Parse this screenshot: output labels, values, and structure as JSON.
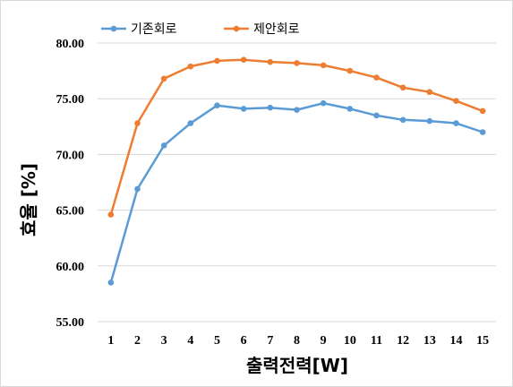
{
  "chart_data": {
    "type": "line",
    "x": [
      1,
      2,
      3,
      4,
      5,
      6,
      7,
      8,
      9,
      10,
      11,
      12,
      13,
      14,
      15
    ],
    "series": [
      {
        "name": "기존회로",
        "color": "#5b9bd5",
        "values": [
          58.5,
          66.9,
          70.8,
          72.8,
          74.4,
          74.1,
          74.2,
          74.0,
          74.6,
          74.1,
          73.5,
          73.1,
          73.0,
          72.8,
          72.0
        ]
      },
      {
        "name": "제안회로",
        "color": "#ed7d31",
        "values": [
          64.6,
          72.8,
          76.8,
          77.9,
          78.4,
          78.5,
          78.3,
          78.2,
          78.0,
          77.5,
          76.9,
          76.0,
          75.6,
          74.8,
          73.9
        ]
      }
    ],
    "xlabel": "출력전력[W]",
    "ylabel": "효율 [%]",
    "ylim": [
      55,
      80
    ],
    "y_ticks": [
      "55.00",
      "60.00",
      "65.00",
      "70.00",
      "75.00",
      "80.00"
    ],
    "x_ticks": [
      "1",
      "2",
      "3",
      "4",
      "5",
      "6",
      "7",
      "8",
      "9",
      "10",
      "11",
      "12",
      "13",
      "14",
      "15"
    ],
    "grid": "horizontal",
    "legend": "top"
  }
}
